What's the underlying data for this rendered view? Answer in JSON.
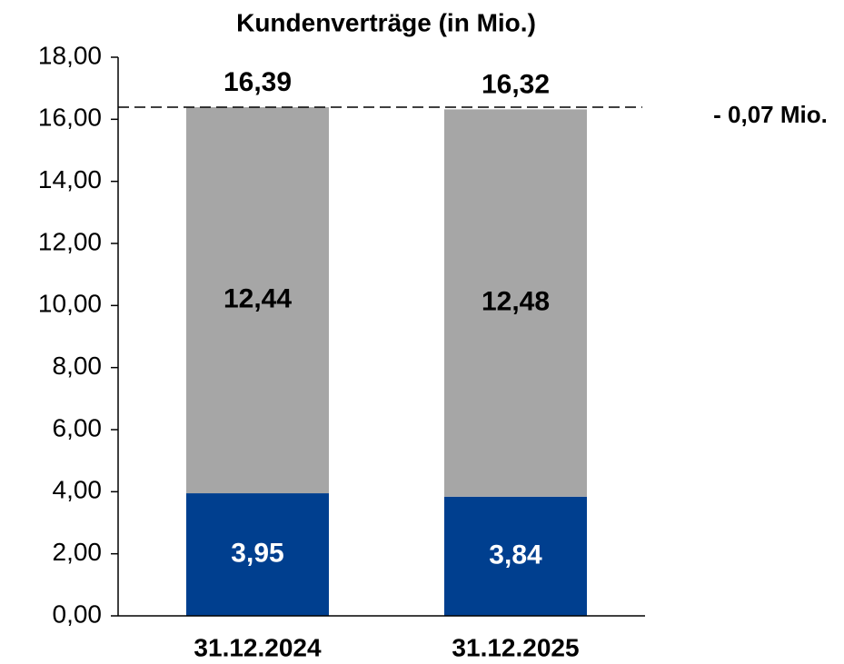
{
  "chart_data": {
    "type": "stacked_bar",
    "title": "Kundenverträge (in Mio.)",
    "categories": [
      "31.12.2024",
      "31.12.2025"
    ],
    "series": [
      {
        "color": "#003f8f",
        "label_color": "#ffffff",
        "values": [
          3.95,
          3.84
        ],
        "value_labels": [
          "3,95",
          "3,84"
        ]
      },
      {
        "color": "#a6a6a6",
        "label_color": "#000000",
        "values": [
          12.44,
          12.48
        ],
        "value_labels": [
          "12,44",
          "12,48"
        ]
      }
    ],
    "totals": {
      "values": [
        16.39,
        16.32
      ],
      "value_labels": [
        "16,39",
        "16,32"
      ]
    },
    "annotation": "- 0,07 Mio.",
    "ylim": [
      0,
      18
    ],
    "yticks": [
      {
        "value": 0,
        "label": "0,00"
      },
      {
        "value": 2,
        "label": "2,00"
      },
      {
        "value": 4,
        "label": "4,00"
      },
      {
        "value": 6,
        "label": "6,00"
      },
      {
        "value": 8,
        "label": "8,00"
      },
      {
        "value": 10,
        "label": "10,00"
      },
      {
        "value": 12,
        "label": "12,00"
      },
      {
        "value": 14,
        "label": "14,00"
      },
      {
        "value": 16,
        "label": "16,00"
      },
      {
        "value": 18,
        "label": "18,00"
      }
    ]
  }
}
